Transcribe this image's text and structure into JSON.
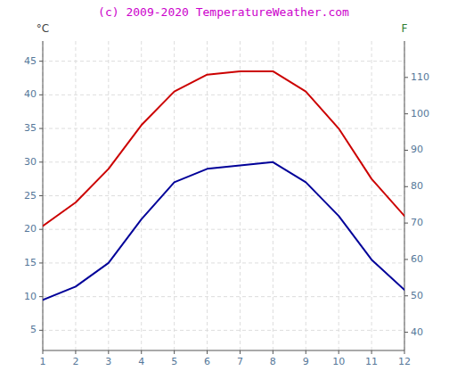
{
  "chart_data": {
    "type": "line",
    "title": "(c) 2009-2020 TemperatureWeather.com",
    "ylabel": "°C",
    "y2label": "F",
    "x": [
      1,
      2,
      3,
      4,
      5,
      6,
      7,
      8,
      9,
      10,
      11,
      12
    ],
    "xlim": [
      1,
      12
    ],
    "xticks": [
      1,
      2,
      3,
      4,
      5,
      6,
      7,
      8,
      9,
      10,
      11,
      12
    ],
    "series": [
      {
        "color": "#cc0000",
        "values": [
          20.5,
          24.0,
          29.0,
          35.5,
          40.5,
          43.0,
          43.5,
          43.5,
          40.5,
          35.0,
          27.5,
          22.0
        ]
      },
      {
        "color": "#000099",
        "values": [
          9.5,
          11.5,
          15.0,
          21.5,
          27.0,
          29.0,
          29.5,
          30.0,
          27.0,
          22.0,
          15.5,
          11.0
        ]
      }
    ],
    "ylim": [
      2,
      48
    ],
    "yticks": [
      5,
      10,
      15,
      20,
      25,
      30,
      35,
      40,
      45
    ],
    "y2lim": [
      35,
      120
    ],
    "y2ticks": [
      40,
      50,
      60,
      70,
      80,
      90,
      100,
      110
    ],
    "grid": true
  }
}
